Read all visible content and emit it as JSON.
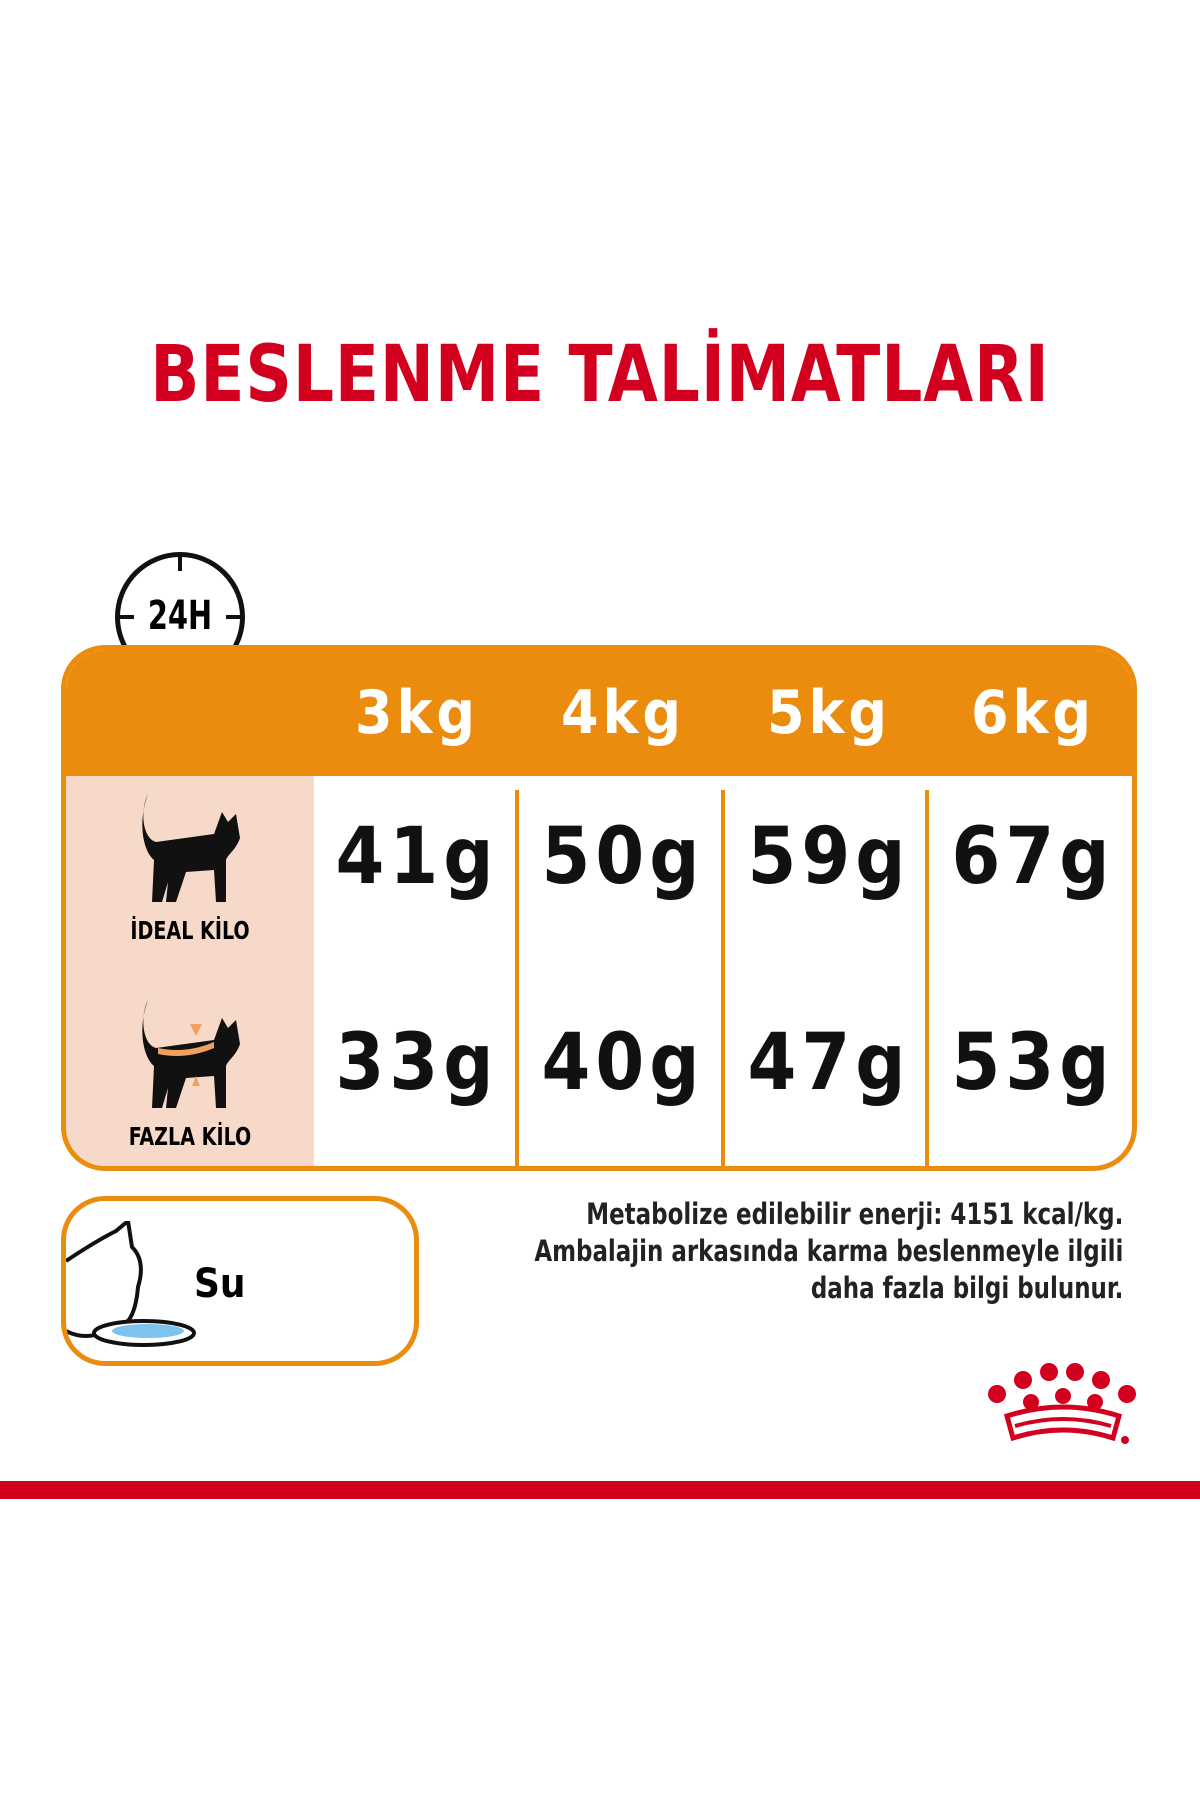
{
  "title": "BESLENME TALİMATLARI",
  "clock_label": "24H",
  "table": {
    "columns": [
      "3kg",
      "4kg",
      "5kg",
      "6kg"
    ],
    "rows": [
      {
        "label": "İDEAL KİLO",
        "values": [
          "41g",
          "50g",
          "59g",
          "67g"
        ]
      },
      {
        "label": "FAZLA KİLO",
        "values": [
          "33g",
          "40g",
          "47g",
          "53g"
        ]
      }
    ]
  },
  "water_label": "Su",
  "note_lines": [
    "Metabolize edilebilir enerji: 4151 kcal/kg.",
    "Ambalajin arkasında karma beslenmeyle ilgili",
    "daha fazla bilgi bulunur."
  ],
  "colors": {
    "brand_red": "#d2001e",
    "orange": "#ec8c0e",
    "peach": "#f7d9c9"
  }
}
